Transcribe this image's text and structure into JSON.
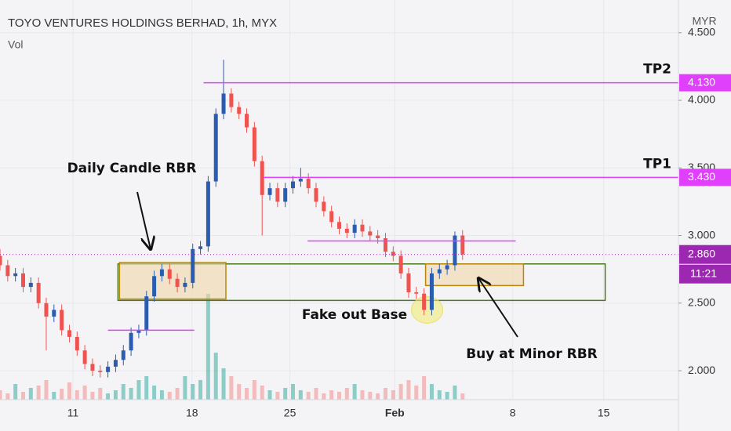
{
  "chart_data": {
    "type": "candlestick",
    "title": "TOYO VENTURES HOLDINGS BERHAD, 1h, MYX",
    "volume_label": "Vol",
    "currency": "MYR",
    "up_color": "#2a5db0",
    "down_color": "#ef5350",
    "volume_up_color": "rgba(38,166,154,0.5)",
    "volume_down_color": "rgba(239,83,80,0.35)",
    "xlim": [
      0,
      88
    ],
    "xticks": [
      {
        "value": 9.46,
        "label": "11"
      },
      {
        "value": 24.9,
        "label": "18"
      },
      {
        "value": 37.6,
        "label": "25"
      },
      {
        "value": 51.2,
        "label": "Feb"
      },
      {
        "value": 66.5,
        "label": "8"
      },
      {
        "value": 78.3,
        "label": "15"
      }
    ],
    "ylim": [
      1.786,
      4.742
    ],
    "yticks": [
      {
        "value": 2,
        "label": "2.000"
      },
      {
        "value": 2.5,
        "label": "2.500"
      },
      {
        "value": 3,
        "label": "3.000"
      },
      {
        "value": 3.5,
        "label": "3.500"
      },
      {
        "value": 4,
        "label": "4.000"
      },
      {
        "value": 4.5,
        "label": "4.500"
      }
    ],
    "vlim": [
      0,
      150
    ],
    "grid": true,
    "open": [
      2.85,
      2.78,
      2.7,
      2.72,
      2.62,
      2.65,
      2.5,
      2.4,
      2.45,
      2.3,
      2.25,
      2.15,
      2.05,
      2.0,
      1.99,
      2.03,
      2.08,
      2.15,
      2.28,
      2.3,
      2.55,
      2.7,
      2.75,
      2.68,
      2.62,
      2.65,
      2.9,
      2.92,
      3.4,
      3.9,
      4.05,
      3.95,
      3.9,
      3.8,
      3.55,
      3.3,
      3.35,
      3.25,
      3.35,
      3.4,
      3.42,
      3.35,
      3.25,
      3.18,
      3.1,
      3.05,
      3.02,
      3.08,
      3.03,
      3.0,
      2.98,
      2.88,
      2.85,
      2.72,
      2.58,
      2.57,
      2.45,
      2.72,
      2.75,
      2.78,
      3.0
    ],
    "high": [
      2.9,
      2.82,
      2.76,
      2.76,
      2.69,
      2.69,
      2.54,
      2.49,
      2.49,
      2.34,
      2.29,
      2.19,
      2.09,
      2.04,
      2.07,
      2.12,
      2.19,
      2.32,
      2.34,
      2.59,
      2.74,
      2.79,
      2.79,
      2.72,
      2.69,
      2.94,
      2.96,
      3.44,
      3.94,
      4.3,
      4.09,
      3.99,
      3.94,
      3.84,
      3.59,
      3.39,
      3.39,
      3.39,
      3.44,
      3.5,
      3.46,
      3.39,
      3.29,
      3.22,
      3.14,
      3.09,
      3.12,
      3.12,
      3.07,
      3.04,
      3.02,
      2.92,
      2.89,
      2.76,
      2.62,
      2.61,
      2.76,
      2.79,
      2.82,
      3.03,
      3.04
    ],
    "low": [
      2.74,
      2.66,
      2.66,
      2.58,
      2.58,
      2.46,
      2.15,
      2.36,
      2.26,
      2.21,
      2.11,
      2.01,
      1.96,
      1.95,
      1.95,
      1.99,
      2.04,
      2.11,
      2.24,
      2.26,
      2.51,
      2.66,
      2.64,
      2.58,
      2.58,
      2.61,
      2.86,
      2.88,
      3.36,
      3.86,
      3.91,
      3.86,
      3.76,
      3.51,
      3.0,
      3.26,
      3.21,
      3.21,
      3.31,
      3.36,
      3.31,
      3.21,
      3.14,
      3.06,
      3.01,
      2.98,
      2.98,
      2.99,
      2.96,
      2.94,
      2.84,
      2.81,
      2.68,
      2.54,
      2.53,
      2.41,
      2.41,
      2.68,
      2.71,
      2.74,
      2.82
    ],
    "close": [
      2.78,
      2.7,
      2.72,
      2.62,
      2.65,
      2.5,
      2.4,
      2.45,
      2.3,
      2.25,
      2.15,
      2.05,
      2.0,
      1.99,
      2.03,
      2.08,
      2.15,
      2.28,
      2.3,
      2.55,
      2.7,
      2.75,
      2.68,
      2.62,
      2.65,
      2.9,
      2.92,
      3.4,
      3.9,
      4.05,
      3.95,
      3.9,
      3.8,
      3.55,
      3.3,
      3.35,
      3.25,
      3.35,
      3.4,
      3.42,
      3.35,
      3.25,
      3.18,
      3.1,
      3.05,
      3.02,
      3.08,
      3.03,
      3.0,
      2.98,
      2.88,
      2.85,
      2.72,
      2.58,
      2.57,
      2.45,
      2.72,
      2.75,
      2.78,
      3.0,
      2.86
    ],
    "volume": [
      12,
      8,
      20,
      10,
      15,
      18,
      25,
      10,
      14,
      22,
      12,
      18,
      10,
      15,
      8,
      12,
      20,
      15,
      25,
      30,
      18,
      12,
      10,
      15,
      30,
      20,
      25,
      135,
      60,
      40,
      30,
      20,
      15,
      25,
      18,
      12,
      10,
      15,
      20,
      12,
      10,
      15,
      8,
      12,
      10,
      15,
      20,
      12,
      10,
      8,
      15,
      12,
      20,
      25,
      18,
      30,
      20,
      12,
      10,
      18,
      8
    ],
    "levels": [
      {
        "value": 4.13,
        "label": "4.130",
        "name": "TP2",
        "x": [
          26.4,
          88
        ]
      },
      {
        "value": 3.43,
        "label": "3.430",
        "name": "TP1",
        "x": [
          34.1,
          88
        ]
      },
      {
        "value": 2.96,
        "x": [
          39.9,
          66.9
        ]
      },
      {
        "value": 2.3,
        "x": [
          14.0,
          25.2
        ]
      }
    ],
    "last": {
      "value": 2.86,
      "label": "2.860"
    },
    "countdown": "11:21",
    "zones": [
      {
        "x": [
          15.3,
          78.5
        ],
        "y": [
          2.52,
          2.79
        ],
        "color": "#4a7a1c",
        "fill": "none"
      },
      {
        "x": [
          15.5,
          29.3
        ],
        "y": [
          2.53,
          2.8
        ],
        "color": "#b8860b",
        "fill": "rgba(240,215,170,0.6)"
      },
      {
        "x": [
          55.2,
          67.9
        ],
        "y": [
          2.63,
          2.79
        ],
        "color": "#b8860b",
        "fill": "rgba(240,215,170,0.6)"
      }
    ],
    "highlight": {
      "x": 55.4,
      "y": 2.45
    },
    "annotations": [
      "Daily Candle RBR",
      "Fake out Base",
      "Buy at Minor RBR"
    ]
  }
}
